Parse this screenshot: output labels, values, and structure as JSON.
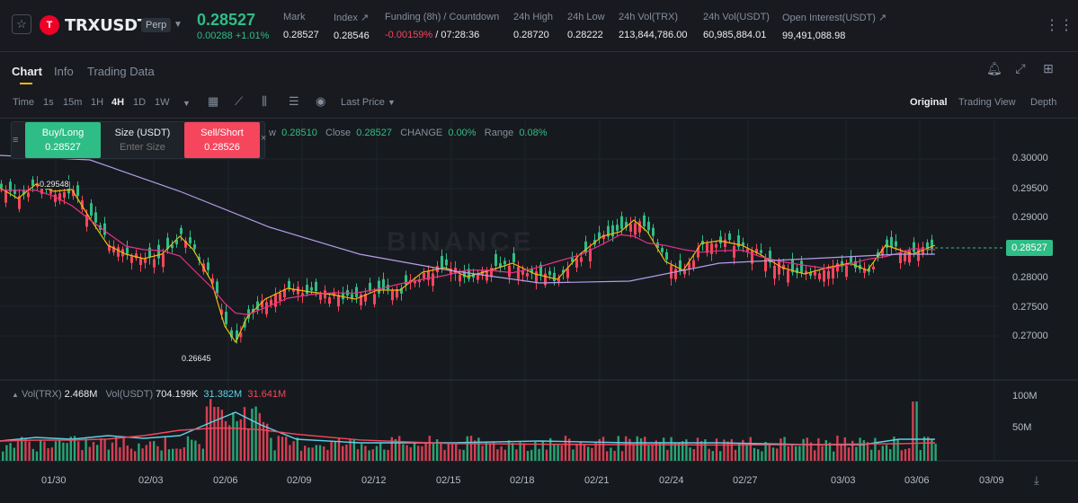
{
  "header": {
    "symbol": "TRXUSDT",
    "badge": "Perp",
    "logo_letter": "T",
    "last_price": "0.28527",
    "change": "0.00288 +1.01%",
    "stats": [
      {
        "label": "Mark",
        "value": "0.28527"
      },
      {
        "label": "Index ↗",
        "value": "0.28546"
      },
      {
        "label": "Funding (8h) / Countdown",
        "value_neg": "-0.00159%",
        "value_rest": " / 07:28:36"
      },
      {
        "label": "24h High",
        "value": "0.28720"
      },
      {
        "label": "24h Low",
        "value": "0.28222"
      },
      {
        "label": "24h Vol(TRX)",
        "value": "213,844,786.00"
      },
      {
        "label": "24h Vol(USDT)",
        "value": "60,985,884.01"
      },
      {
        "label": "Open Interest(USDT) ↗",
        "value": "99,491,088.98"
      }
    ],
    "more": "⋮⋮"
  },
  "tabs": [
    "Chart",
    "Info",
    "Trading Data"
  ],
  "toolbar": {
    "time_label": "Time",
    "intervals": [
      "1s",
      "15m",
      "1H",
      "4H",
      "1D",
      "1W"
    ],
    "active_interval": "4H",
    "price_type": "Last Price",
    "views": [
      "Original",
      "Trading View",
      "Depth"
    ],
    "active_view": "Original"
  },
  "order": {
    "buy_label": "Buy/Long",
    "buy_price": "0.28527",
    "size_label": "Size (USDT)",
    "size_placeholder": "Enter Size",
    "sell_label": "Sell/Short",
    "sell_price": "0.28526"
  },
  "ohlc_legend": {
    "low_partial": "w",
    "low_value": "0.28510",
    "close_label": "Close",
    "close_value": "0.28527",
    "change_label": "CHANGE",
    "change_value": "0.00%",
    "range_label": "Range",
    "range_value": "0.08%"
  },
  "price_axis": [
    "0.30000",
    "0.29500",
    "0.29000",
    "0.28000",
    "0.27500",
    "0.27000"
  ],
  "current_price_tag": "0.28527",
  "high_marker": "0.29548",
  "low_marker": "0.26645",
  "volume_legend": {
    "label1": "Vol(TRX)",
    "value1": "2.468M",
    "label2": "Vol(USDT)",
    "value2": "704.199K",
    "value3": "31.382M",
    "value4": "31.641M"
  },
  "volume_axis": [
    "100M",
    "50M"
  ],
  "date_axis": [
    "01/30",
    "02/03",
    "02/06",
    "02/09",
    "02/12",
    "02/15",
    "02/18",
    "02/21",
    "02/24",
    "02/27",
    "03/03",
    "03/06",
    "03/09"
  ],
  "watermark": "BINANCE",
  "colors": {
    "up": "#2ebd85",
    "down": "#f6465d",
    "ma1": "#f0b90b",
    "ma2": "#e8318a",
    "ma3": "#b79ce8",
    "vol_ma1": "#5fd0e8",
    "vol_ma2": "#f6465d"
  }
}
